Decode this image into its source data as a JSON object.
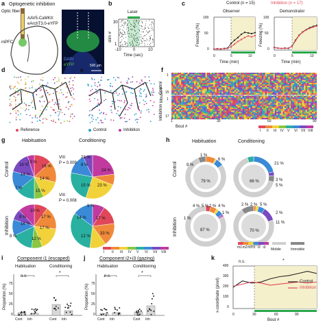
{
  "panels": {
    "a": {
      "label": "a",
      "title": "Optogenetic inhibition",
      "fiber": "Optic fiber",
      "virus1": "AAV5-CaMKII:",
      "virus2": "eArchT3.0-eYFP",
      "region": "mPFC",
      "dapi": "DAPI",
      "eyfp": "eYFP",
      "scale": "500 μm"
    },
    "b": {
      "label": "b",
      "laser": "Laser",
      "ylabel": "stim #",
      "xlabel": "Time (sec)",
      "yt1": "30",
      "yt2": "1",
      "xticks": [
        "-10",
        "0",
        "10"
      ]
    },
    "c": {
      "label": "c",
      "legend_control": "Control (n = 15)",
      "legend_inhibition": "Inhibition (n = 17)",
      "observer": "Observer",
      "demonstrator": "Demonstrator",
      "ylabel": "Freezing (%)",
      "xlabel": "Time (min)",
      "yticks": [
        "0",
        "25",
        "50",
        "75",
        "100"
      ],
      "xticks": [
        "0",
        "5",
        "10"
      ]
    },
    "d": {
      "label": "d",
      "legend": "Reference"
    },
    "e": {
      "label": "e",
      "legend_control": "Control",
      "legend_inhibition": "Inhibition"
    },
    "f": {
      "label": "f",
      "ylabel": "Mouse #",
      "group_control": "Control",
      "group_inhibition": "Inhibition",
      "y1": "1",
      "y15": "15",
      "y17": "17",
      "xlabel": "Bout #",
      "xticks": [
        "1",
        "30",
        "60",
        "90"
      ],
      "classes": [
        "I",
        "II",
        "III",
        "IV",
        "V",
        "VI",
        "VII",
        "VIII"
      ]
    },
    "g": {
      "label": "g",
      "habituation": "Habituation",
      "conditioning": "Conditioning",
      "control": "Control",
      "inhibition": "Inhibition",
      "ctrl_hab": [
        "13 %",
        "16 %",
        "14 %",
        "7 %",
        "14 %",
        "15 %",
        "16 %"
      ],
      "ctrl_cond": [
        "23 %",
        "8 %",
        "24 %",
        "23 %",
        "15 %"
      ],
      "inh_hab": [
        "10 %",
        "17 %",
        "17 %",
        "8 %",
        "16 %",
        "12 %",
        "8 %"
      ],
      "inh_cond": [
        "9 %",
        "14 %",
        "17 %",
        "12 %",
        "33 %"
      ],
      "viii_top": "VIII",
      "p_top": "P = 0.009",
      "viii_bot": "VIII",
      "p_bot": "P = 0.008",
      "classes": [
        "I",
        "II",
        "III",
        "IV",
        "V",
        "VI",
        "VII",
        "VIII"
      ]
    },
    "h": {
      "label": "h",
      "habituation": "Habituation",
      "conditioning": "Conditioning",
      "control": "Control",
      "inhibition": "Inhibition",
      "ctrl_hab": [
        "8 %",
        "1 %",
        "79 %",
        "6 %"
      ],
      "ctrl_cond": [
        "21 %",
        "3 %",
        "5 %",
        "66 %"
      ],
      "inh_hab": [
        "4 %",
        "5 %",
        "2 %",
        "4 %",
        "1 %",
        "1 %",
        "87 %"
      ],
      "inh_cond": [
        "2 %",
        "2 %",
        "5 %",
        "70 %",
        "2 %",
        "11 %"
      ],
      "classes": [
        "m1",
        "m2",
        "m3",
        "i1",
        "i2",
        "i3"
      ],
      "mobile": "Mobile",
      "immobile": "Immobile"
    },
    "i": {
      "label": "i",
      "title": "Component i1 (escaped)",
      "habituation": "Habituation",
      "conditioning": "Conditioning",
      "ylabel": "Proportion (%)",
      "ns": "n.s.",
      "sig": "*",
      "yticks": [
        "0",
        "25",
        "50",
        "75"
      ],
      "xticks": [
        "Cont",
        "Inh",
        "Cont",
        "Inh"
      ]
    },
    "j": {
      "label": "j",
      "title": "Component i2+i3 (gazing)",
      "habituation": "Habituation",
      "conditioning": "Conditioning",
      "ylabel": "Proportion (%)",
      "ns": "n.s.",
      "sig": "*",
      "yticks": [
        "0",
        "25",
        "50",
        "75"
      ],
      "xticks": [
        "Cont",
        "Inh",
        "Cont",
        "Inh"
      ]
    },
    "k": {
      "label": "k",
      "ns": "n.s.",
      "sig": "*",
      "ylabel": "x-coordinate (pixel)",
      "xlabel": "Bout #",
      "yticks": [
        "0",
        "100",
        "200",
        "300",
        "400"
      ],
      "xticks": [
        "0",
        "30",
        "60",
        "90"
      ],
      "legend_control": "Control",
      "legend_inhibition": "Inhibition"
    }
  },
  "colors": {
    "control": "#222222",
    "inhibition": "#e0485a",
    "laser": "#2aa84a",
    "shade": "#f5f0cc"
  },
  "chart_data": [
    {
      "type": "line",
      "panel": "c-observer",
      "x": [
        0,
        1,
        2,
        3,
        4,
        5,
        6,
        7,
        8,
        9,
        10,
        11,
        12
      ],
      "series": [
        {
          "name": "Control (n = 15)",
          "values": [
            3,
            4,
            3,
            5,
            6,
            20,
            30,
            38,
            48,
            54,
            52,
            50,
            53
          ]
        },
        {
          "name": "Inhibition (n = 17)",
          "values": [
            3,
            3,
            4,
            4,
            5,
            10,
            18,
            26,
            32,
            38,
            43,
            40,
            44
          ]
        }
      ],
      "ylim": [
        0,
        100
      ],
      "xlabel": "Time (min)",
      "ylabel": "Freezing (%)"
    },
    {
      "type": "line",
      "panel": "c-demonstrator",
      "x": [
        0,
        1,
        2,
        3,
        4,
        5,
        6,
        7,
        8,
        9,
        10,
        11,
        12
      ],
      "series": [
        {
          "name": "Control (n = 15)",
          "values": [
            8,
            6,
            5,
            6,
            5,
            12,
            30,
            45,
            55,
            62,
            68,
            72,
            75
          ]
        },
        {
          "name": "Inhibition (n = 17)",
          "values": [
            7,
            6,
            5,
            5,
            6,
            11,
            28,
            44,
            54,
            61,
            66,
            70,
            73
          ]
        }
      ],
      "ylim": [
        0,
        100
      ],
      "xlabel": "Time (min)",
      "ylabel": "Freezing (%)"
    },
    {
      "type": "line",
      "panel": "k",
      "x": [
        0,
        10,
        20,
        30,
        40,
        50,
        60,
        70,
        80,
        90
      ],
      "series": [
        {
          "name": "Control",
          "values": [
            200,
            260,
            240,
            250,
            280,
            300,
            310,
            330,
            350,
            330
          ]
        },
        {
          "name": "Inhibition",
          "values": [
            210,
            230,
            250,
            240,
            220,
            230,
            240,
            250,
            240,
            250
          ]
        }
      ],
      "ylim": [
        0,
        400
      ],
      "xlabel": "Bout #",
      "ylabel": "x-coordinate (pixel)"
    }
  ]
}
